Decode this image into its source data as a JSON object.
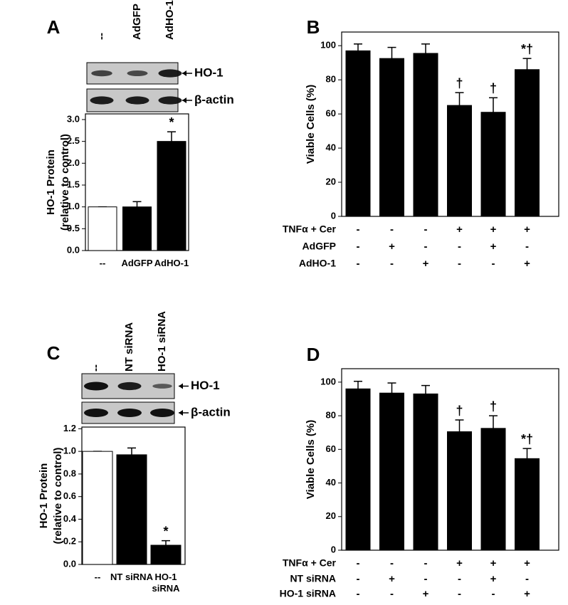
{
  "chart_data": [
    {
      "type": "bar",
      "panel": "A",
      "blot": {
        "lanes": [
          "--",
          "AdGFP",
          "AdHO-1"
        ],
        "rows": [
          "HO-1",
          "β-actin"
        ]
      },
      "ylabel": [
        "HO-1 Protein",
        "(relative to control)"
      ],
      "categories": [
        "--",
        "AdGFP",
        "AdHO-1"
      ],
      "values": [
        1.0,
        1.0,
        2.5
      ],
      "errors": [
        0,
        0.12,
        0.22
      ],
      "colors": [
        "#ffffff",
        "#000000",
        "#000000"
      ],
      "annotations": [
        null,
        null,
        "*"
      ],
      "ylim": [
        0,
        3.13
      ],
      "yticks": [
        {
          "value": 0,
          "label": "0.0"
        },
        {
          "value": 0.5,
          "label": "0.5"
        },
        {
          "value": 1,
          "label": "1.0"
        },
        {
          "value": 1.5,
          "label": "1.5"
        },
        {
          "value": 2,
          "label": "2.0"
        },
        {
          "value": 2.5,
          "label": "2.5"
        },
        {
          "value": 3,
          "label": "3.0"
        }
      ]
    },
    {
      "type": "bar",
      "panel": "B",
      "ylabel": [
        "Viable Cells (%)"
      ],
      "values": [
        97,
        92.5,
        95.5,
        65,
        61,
        86
      ],
      "errors": [
        4,
        6.5,
        5.5,
        7.5,
        8.5,
        6.5
      ],
      "colors": [
        "#000000",
        "#000000",
        "#000000",
        "#000000",
        "#000000",
        "#000000"
      ],
      "annotations": [
        null,
        null,
        null,
        "†",
        "†",
        "*†"
      ],
      "ylim": [
        0,
        108
      ],
      "yticks": [
        0,
        20,
        40,
        60,
        80,
        100
      ],
      "treatments": [
        {
          "label": "TNFα + Cer",
          "marks": [
            "-",
            "-",
            "-",
            "+",
            "+",
            "+"
          ]
        },
        {
          "label": "AdGFP",
          "marks": [
            "-",
            "+",
            "-",
            "-",
            "+",
            "-"
          ]
        },
        {
          "label": "AdHO-1",
          "marks": [
            "-",
            "-",
            "+",
            "-",
            "-",
            "+"
          ]
        }
      ]
    },
    {
      "type": "bar",
      "panel": "C",
      "blot": {
        "lanes": [
          "--",
          "NT siRNA",
          "HO-1 siRNA"
        ],
        "rows": [
          "HO-1",
          "β-actin"
        ]
      },
      "ylabel": [
        "HO-1 Protein",
        "(relative to control)"
      ],
      "categories": [
        "--",
        "NT siRNA",
        "HO-1 siRNA"
      ],
      "values": [
        1.0,
        0.97,
        0.17
      ],
      "errors": [
        0,
        0.06,
        0.04
      ],
      "colors": [
        "#ffffff",
        "#000000",
        "#000000"
      ],
      "annotations": [
        null,
        null,
        "*"
      ],
      "ylim": [
        0,
        1.215
      ],
      "yticks": [
        {
          "value": 0,
          "label": "0.0"
        },
        {
          "value": 0.2,
          "label": "0.2"
        },
        {
          "value": 0.4,
          "label": "0.4"
        },
        {
          "value": 0.6,
          "label": "0.6"
        },
        {
          "value": 0.8,
          "label": "0.8"
        },
        {
          "value": 1,
          "label": "1.0"
        },
        {
          "value": 1.2,
          "label": "1.2"
        }
      ]
    },
    {
      "type": "bar",
      "panel": "D",
      "ylabel": [
        "Viable Cells (%)"
      ],
      "values": [
        96,
        93.5,
        93,
        70.5,
        72.5,
        54.5
      ],
      "errors": [
        4.5,
        6,
        5,
        7,
        7.5,
        6
      ],
      "colors": [
        "#000000",
        "#000000",
        "#000000",
        "#000000",
        "#000000",
        "#000000"
      ],
      "annotations": [
        null,
        null,
        null,
        "†",
        "†",
        "*†"
      ],
      "ylim": [
        0,
        108
      ],
      "yticks": [
        0,
        20,
        40,
        60,
        80,
        100
      ],
      "treatments": [
        {
          "label": "TNFα + Cer",
          "marks": [
            "-",
            "-",
            "-",
            "+",
            "+",
            "+"
          ]
        },
        {
          "label": "NT siRNA",
          "marks": [
            "-",
            "+",
            "-",
            "-",
            "+",
            "-"
          ]
        },
        {
          "label": "HO-1 siRNA",
          "marks": [
            "-",
            "-",
            "+",
            "-",
            "-",
            "+"
          ]
        }
      ]
    }
  ]
}
